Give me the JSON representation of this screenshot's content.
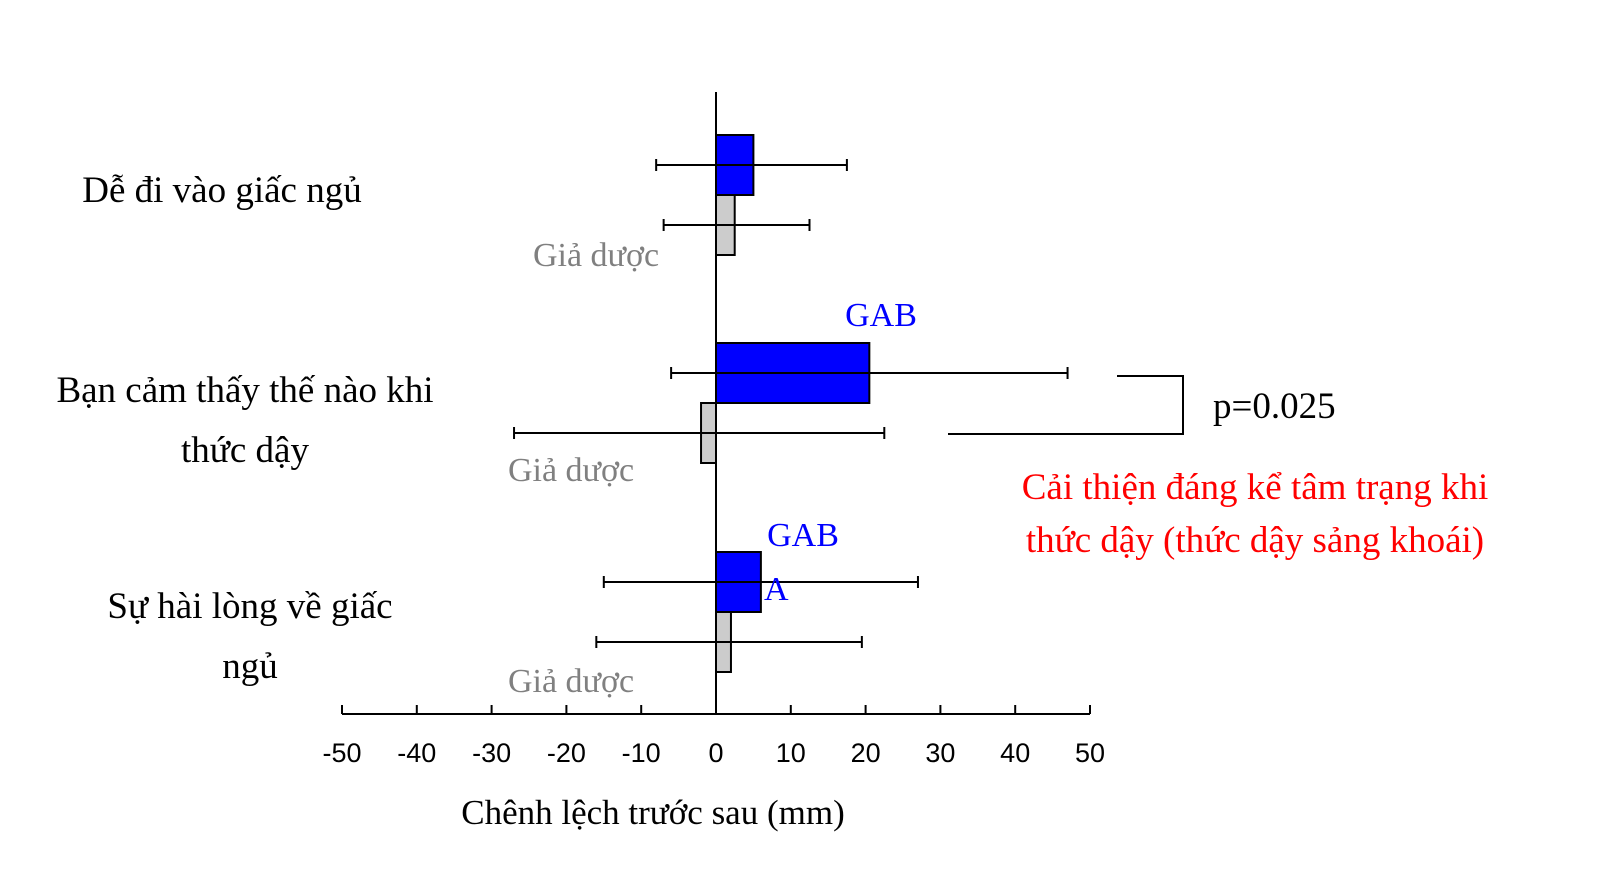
{
  "chart_data": {
    "type": "bar",
    "orientation": "horizontal",
    "categories": [
      {
        "label_lines": [
          "Dễ đi vào giấc ngủ"
        ]
      },
      {
        "label_lines": [
          "Bạn cảm thấy thế nào khi",
          "thức dậy"
        ]
      },
      {
        "label_lines": [
          "Sự hài lòng về giấc",
          "ngủ"
        ]
      }
    ],
    "series": [
      {
        "name": "GAB",
        "color": "#0000ff",
        "values": [
          5,
          20.5,
          6
        ],
        "error_low": [
          -8,
          -6,
          -15
        ],
        "error_high": [
          17.5,
          47,
          27
        ]
      },
      {
        "name": "Giả dược",
        "color": "#cccccc",
        "values": [
          2.5,
          -2,
          2
        ],
        "error_low": [
          -7,
          -27,
          -16
        ],
        "error_high": [
          12.5,
          22.5,
          19.5
        ]
      }
    ],
    "bar_labels": {
      "gab": [
        "",
        "GAB",
        "GAB\nA"
      ],
      "placebo": [
        "Giả dược",
        "Giả dược",
        "Giả dược"
      ]
    },
    "xlim": [
      -50,
      50
    ],
    "xticks": [
      -50,
      -40,
      -30,
      -20,
      -10,
      0,
      10,
      20,
      30,
      40,
      50
    ],
    "xlabel": "Chênh lệch trước sau (mm)",
    "significance": {
      "text": "p=0.025",
      "category_index": 1
    },
    "annotation": {
      "lines": [
        "Cải thiện đáng kể tâm trạng khi",
        "thức dậy (thức dậy sảng khoái)"
      ],
      "color": "#ff0000"
    },
    "label_color_gab": "#0000ff",
    "label_color_placebo": "#808080"
  }
}
